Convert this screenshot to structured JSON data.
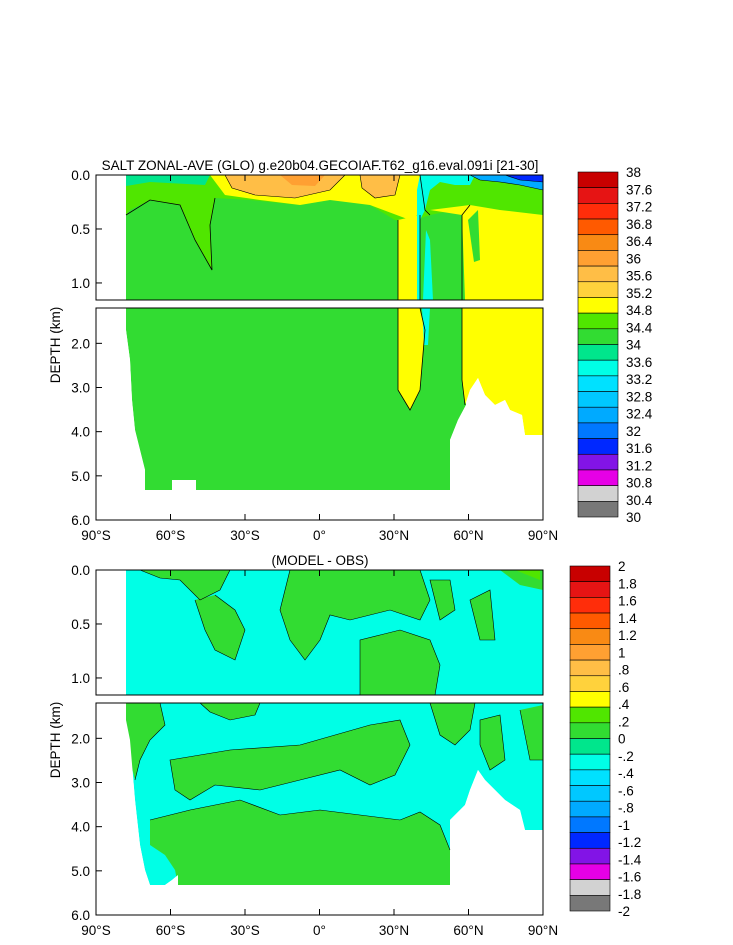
{
  "chart_data": [
    {
      "type": "heatmap",
      "title": "SALT ZONAL-AVE (GLO) g.e20b04.GECOIAF.T62_g16.eval.091i [21-30]",
      "ylabel": "DEPTH (km)",
      "xlim": [
        -90,
        90
      ],
      "x_ticks": [
        {
          "value": -90,
          "label": "90°S"
        },
        {
          "value": -60,
          "label": "60°S"
        },
        {
          "value": -30,
          "label": "30°S"
        },
        {
          "value": 0,
          "label": "0°"
        },
        {
          "value": 30,
          "label": "30°N"
        },
        {
          "value": 60,
          "label": "60°N"
        },
        {
          "value": 90,
          "label": "90°N"
        }
      ],
      "upper_y_ticks": [
        {
          "value": 0,
          "label": "0.0"
        },
        {
          "value": 0.5,
          "label": "0.5"
        },
        {
          "value": 1.0,
          "label": "1.0"
        }
      ],
      "lower_y_ticks": [
        {
          "value": 2,
          "label": "2.0"
        },
        {
          "value": 3,
          "label": "3.0"
        },
        {
          "value": 4,
          "label": "4.0"
        },
        {
          "value": 5,
          "label": "5.0"
        },
        {
          "value": 6,
          "label": "6.0"
        }
      ],
      "colorbar_labels": [
        "38",
        "37.6",
        "37.2",
        "36.8",
        "36.4",
        "36",
        "35.6",
        "35.2",
        "34.8",
        "34.4",
        "34",
        "33.6",
        "33.2",
        "32.8",
        "32.4",
        "32",
        "31.6",
        "31.2",
        "30.8",
        "30.4",
        "30"
      ]
    },
    {
      "type": "heatmap",
      "title": "(MODEL - OBS)",
      "ylabel": "DEPTH (km)",
      "xlim": [
        -90,
        90
      ],
      "x_ticks": [
        {
          "value": -90,
          "label": "90°S"
        },
        {
          "value": -60,
          "label": "60°S"
        },
        {
          "value": -30,
          "label": "30°S"
        },
        {
          "value": 0,
          "label": "0°"
        },
        {
          "value": 30,
          "label": "30°N"
        },
        {
          "value": 60,
          "label": "60°N"
        },
        {
          "value": 90,
          "label": "90°N"
        }
      ],
      "upper_y_ticks": [
        {
          "value": 0,
          "label": "0.0"
        },
        {
          "value": 0.5,
          "label": "0.5"
        },
        {
          "value": 1.0,
          "label": "1.0"
        }
      ],
      "lower_y_ticks": [
        {
          "value": 2,
          "label": "2.0"
        },
        {
          "value": 3,
          "label": "3.0"
        },
        {
          "value": 4,
          "label": "4.0"
        },
        {
          "value": 5,
          "label": "5.0"
        },
        {
          "value": 6,
          "label": "6.0"
        }
      ],
      "colorbar_labels": [
        "2",
        "1.8",
        "1.6",
        "1.4",
        "1.2",
        "1",
        ".8",
        ".6",
        ".4",
        ".2",
        "0",
        "-.2",
        "-.4",
        "-.6",
        "-.8",
        "-1",
        "-1.2",
        "-1.4",
        "-1.6",
        "-1.8",
        "-2"
      ]
    }
  ],
  "colors": {
    "palette": [
      "#c80000",
      "#e61414",
      "#ff2d0a",
      "#ff5a00",
      "#f98a14",
      "#ffa032",
      "#ffbe46",
      "#ffd23c",
      "#ffff00",
      "#50e600",
      "#32dc32",
      "#00e68c",
      "#00ffe6",
      "#00e1ff",
      "#00c8ff",
      "#00aaff",
      "#0078ff",
      "#0028ff",
      "#8214e6",
      "#e600e6",
      "#d2d2d2",
      "#787878"
    ],
    "green": "#32dc32",
    "lime": "#50e600",
    "yellow": "#ffff00",
    "orange": "#ffbe46",
    "cyan": "#00ffe6",
    "aqua": "#00e68c",
    "outline": "#000000"
  }
}
